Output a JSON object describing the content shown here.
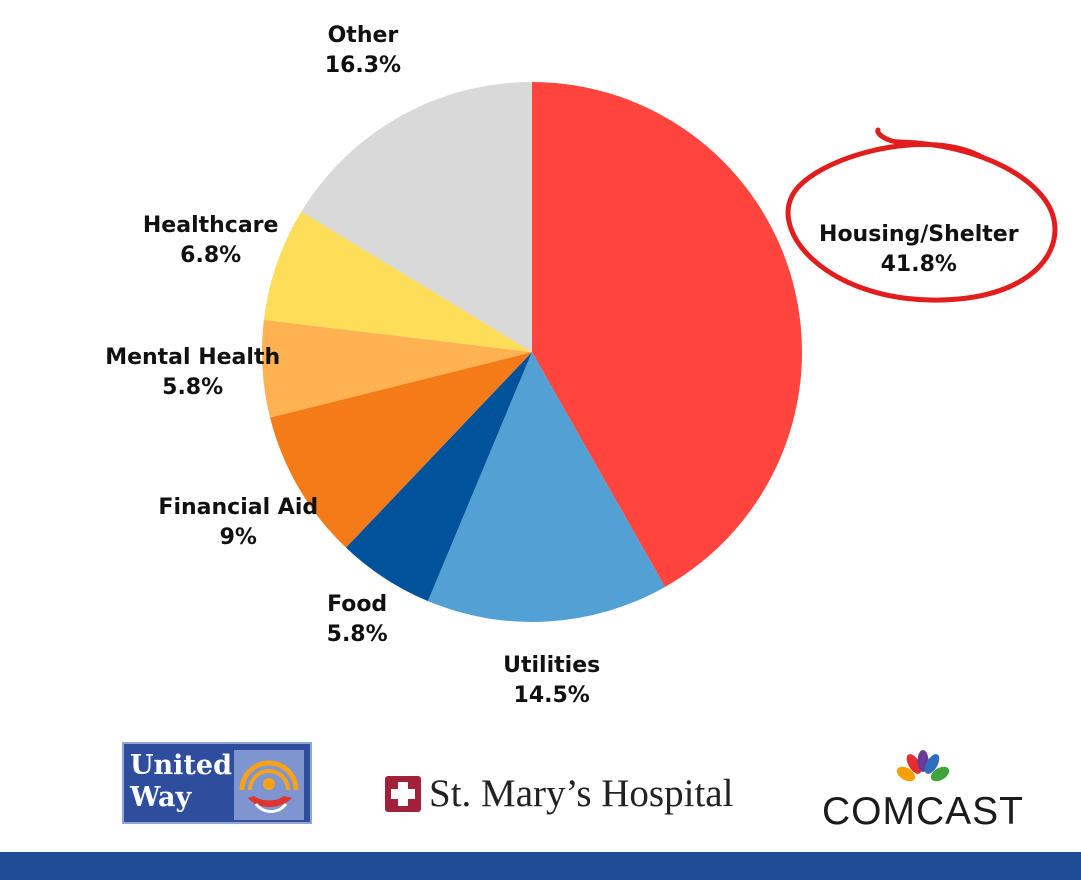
{
  "chart_data": {
    "type": "pie",
    "title": "",
    "slices": [
      {
        "label": "Housing/Shelter",
        "value": 41.8,
        "display": "41.8%",
        "color": "#ff453d"
      },
      {
        "label": "Utilities",
        "value": 14.5,
        "display": "14.5%",
        "color": "#52a0d4"
      },
      {
        "label": "Food",
        "value": 5.8,
        "display": "5.8%",
        "color": "#00529b"
      },
      {
        "label": "Financial Aid",
        "value": 9,
        "display": "9%",
        "color": "#f57a18"
      },
      {
        "label": "Mental Health",
        "value": 5.8,
        "display": "5.8%",
        "color": "#feb251"
      },
      {
        "label": "Healthcare",
        "value": 6.8,
        "display": "6.8%",
        "color": "#fedd59"
      },
      {
        "label": "Other",
        "value": 16.3,
        "display": "16.3%",
        "color": "#d9d9d9"
      }
    ],
    "start_angle": "12 o'clock",
    "direction": "clockwise",
    "highlighted_slice": "Housing/Shelter",
    "highlight_color": "#e11d1d"
  },
  "logos": {
    "united_way": {
      "line1": "United",
      "line2": "Way",
      "bg_color": "#2e4d9c"
    },
    "st_marys": {
      "text": "St. Mary’s Hospital",
      "mark_color": "#a2213a"
    },
    "comcast": {
      "text": "COMCAST"
    }
  },
  "footer": {
    "color": "#1f4c96"
  }
}
